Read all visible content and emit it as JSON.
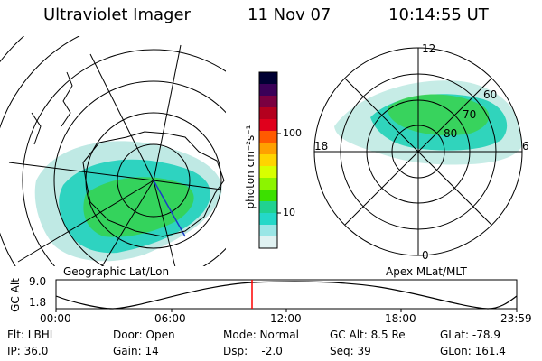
{
  "header": {
    "instrument": "Ultraviolet Imager",
    "date": "11 Nov 07",
    "time": "10:14:55 UT"
  },
  "geo_map": {
    "label": "Geographic Lat/Lon"
  },
  "colorbar": {
    "unit_label": "photon cm⁻²s⁻¹",
    "ticks": [
      "100",
      "10"
    ],
    "colors": [
      "#000033",
      "#3a0058",
      "#7a0040",
      "#b4001e",
      "#e0001c",
      "#ff5a00",
      "#ffa000",
      "#ffd400",
      "#d8ff00",
      "#8cf400",
      "#3ce000",
      "#20d290",
      "#24d8c8",
      "#9ae6e6",
      "#e0f2f2"
    ]
  },
  "polar": {
    "label": "Apex MLat/MLT",
    "mlt_labels": [
      "12",
      "18",
      "6",
      "0"
    ],
    "lat_labels": [
      "60",
      "70",
      "80"
    ]
  },
  "timeline": {
    "axis_label": "GC Alt",
    "y_ticks": [
      "9.0",
      "1.8"
    ],
    "x_ticks": [
      "00:00",
      "06:00",
      "12:00",
      "18:00",
      "23:59"
    ],
    "marker_color": "#ff0000"
  },
  "info": {
    "row1": [
      "Flt: LBHL",
      "Door: Open",
      "Mode: Normal",
      "GC Alt: 8.5 Re",
      "GLat: -78.9"
    ],
    "row2": [
      "IP: 36.0",
      "Gain: 14",
      "Dsp:    -2.0",
      "Seq: 39",
      "GLon: 161.4"
    ]
  }
}
